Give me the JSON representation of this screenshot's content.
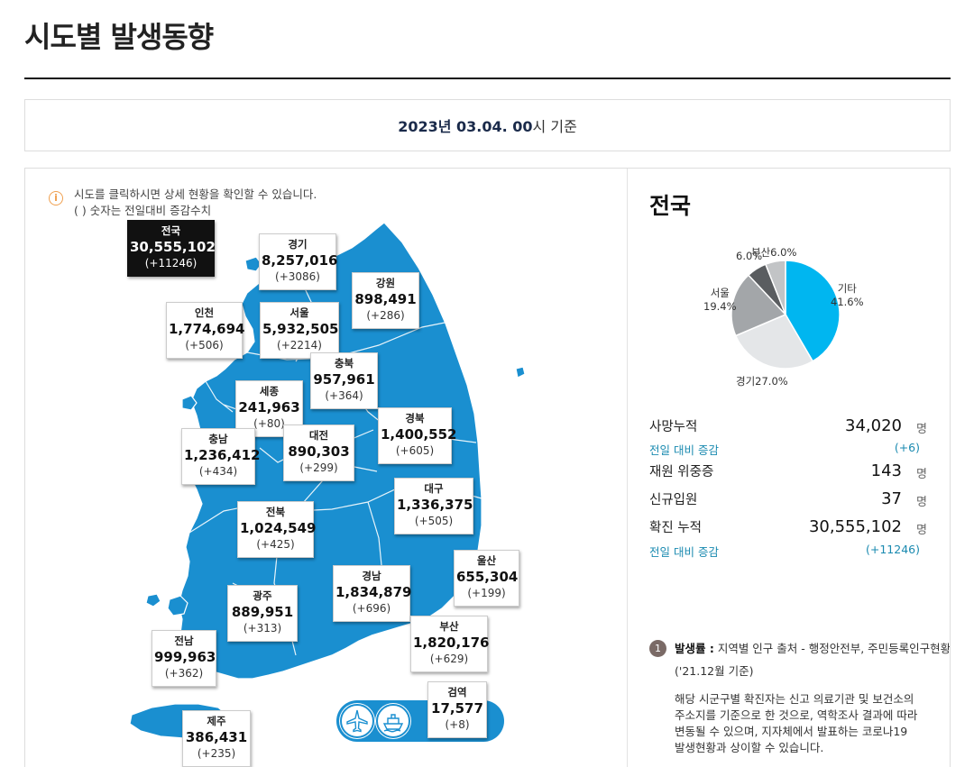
{
  "page": {
    "title": "시도별 발생동향",
    "date_bold": "2023년 03.04. 00",
    "date_suffix": "시 기준"
  },
  "notice": {
    "icon": "info-icon",
    "line1": "시도를 클릭하시면 상세 현황을 확인할 수 있습니다.",
    "line2": "( ) 숫자는 전일대비 증감수치"
  },
  "colors": {
    "map_fill": "#1a8fd0",
    "national_bg": "#111111",
    "accent_text": "#1a8ab0"
  },
  "regions": [
    {
      "key": "national",
      "name": "전국",
      "total": "30,555,102",
      "delta": "(+11246)"
    },
    {
      "key": "gyeonggi",
      "name": "경기",
      "total": "8,257,016",
      "delta": "(+3086)"
    },
    {
      "key": "gangwon",
      "name": "강원",
      "total": "898,491",
      "delta": "(+286)"
    },
    {
      "key": "incheon",
      "name": "인천",
      "total": "1,774,694",
      "delta": "(+506)"
    },
    {
      "key": "seoul",
      "name": "서울",
      "total": "5,932,505",
      "delta": "(+2214)"
    },
    {
      "key": "chungbuk",
      "name": "충북",
      "total": "957,961",
      "delta": "(+364)"
    },
    {
      "key": "sejong",
      "name": "세종",
      "total": "241,963",
      "delta": "(+80)"
    },
    {
      "key": "chungnam",
      "name": "충남",
      "total": "1,236,412",
      "delta": "(+434)"
    },
    {
      "key": "daejeon",
      "name": "대전",
      "total": "890,303",
      "delta": "(+299)"
    },
    {
      "key": "gyeongbuk",
      "name": "경북",
      "total": "1,400,552",
      "delta": "(+605)"
    },
    {
      "key": "daegu",
      "name": "대구",
      "total": "1,336,375",
      "delta": "(+505)"
    },
    {
      "key": "jeonbuk",
      "name": "전북",
      "total": "1,024,549",
      "delta": "(+425)"
    },
    {
      "key": "ulsan",
      "name": "울산",
      "total": "655,304",
      "delta": "(+199)"
    },
    {
      "key": "gyeongnam",
      "name": "경남",
      "total": "1,834,879",
      "delta": "(+696)"
    },
    {
      "key": "gwangju",
      "name": "광주",
      "total": "889,951",
      "delta": "(+313)"
    },
    {
      "key": "busan",
      "name": "부산",
      "total": "1,820,176",
      "delta": "(+629)"
    },
    {
      "key": "jeonnam",
      "name": "전남",
      "total": "999,963",
      "delta": "(+362)"
    },
    {
      "key": "quarantine",
      "name": "검역",
      "total": "17,577",
      "delta": "(+8)"
    },
    {
      "key": "jeju",
      "name": "제주",
      "total": "386,431",
      "delta": "(+235)"
    }
  ],
  "transport": {
    "icons": [
      "airplane-icon",
      "ship-icon"
    ]
  },
  "national": {
    "title": "전국",
    "stats": {
      "deaths_label": "사망누적",
      "deaths_value": "34,020",
      "deaths_unit": "명",
      "deaths_sub_label": "전일 대비 증감",
      "deaths_sub_value": "(+6)",
      "critical_label": "재원 위중증",
      "critical_value": "143",
      "critical_unit": "명",
      "admitted_label": "신규입원",
      "admitted_value": "37",
      "admitted_unit": "명",
      "confirmed_label": "확진 누적",
      "confirmed_value": "30,555,102",
      "confirmed_unit": "명",
      "confirmed_sub_label": "전일 대비 증감",
      "confirmed_sub_value": "(+11246)"
    }
  },
  "chart_data": {
    "type": "pie",
    "slices": [
      {
        "name": "기타",
        "value": 41.6,
        "label": "41.6%",
        "color": "#00b6f0"
      },
      {
        "name": "경기",
        "value": 27.0,
        "label": "27.0%",
        "color": "#e4e6e8"
      },
      {
        "name": "서울",
        "value": 19.4,
        "label": "19.4%",
        "color": "#a3a6a9"
      },
      {
        "name": "6.0%",
        "value": 6.0,
        "label": "",
        "color": "#5a5d60"
      },
      {
        "name": "부산",
        "value": 6.0,
        "label": "6.0%",
        "color": "#c2c4c6"
      }
    ]
  },
  "footnote": {
    "number": "1",
    "head_bold": "발생률 :",
    "head_rest": " 지역별 인구 출처 - 행정안전부, 주민등록인구현황",
    "base": "('21.12월 기준)",
    "desc": "해당 시군구별 확진자는 신고 의료기관 및 보건소의\n주소지를 기준으로 한 것으로, 역학조사 결과에 따라\n변동될 수 있으며, 지자체에서 발표하는 코로나19\n발생현황과 상이할 수 있습니다."
  }
}
